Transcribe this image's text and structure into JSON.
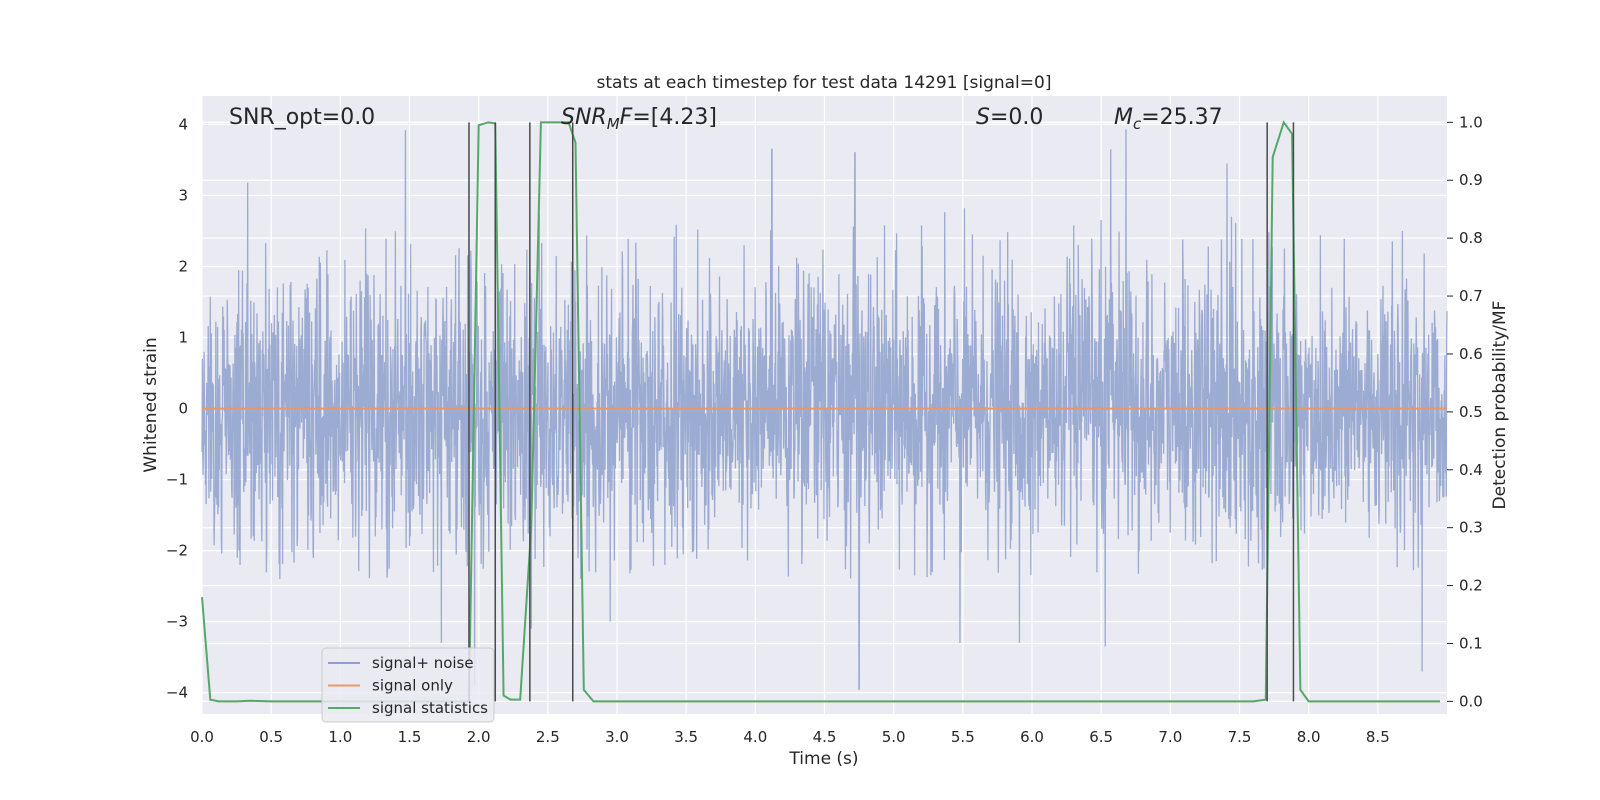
{
  "chart_data": {
    "type": "line",
    "title": "stats at each timestep for test data 14291 [signal=0]",
    "xlabel": "Time (s)",
    "ylabel": "Whitened strain",
    "y2label": "Detection probability/MF",
    "xlim": [
      0.0,
      9.0
    ],
    "ylim": [
      -4.3,
      4.4
    ],
    "y2lim": [
      -0.0218,
      1.0455
    ],
    "xticks": [
      "0.0",
      "0.5",
      "1.0",
      "1.5",
      "2.0",
      "2.5",
      "3.0",
      "3.5",
      "4.0",
      "4.5",
      "5.0",
      "5.5",
      "6.0",
      "6.5",
      "7.0",
      "7.5",
      "8.0",
      "8.5"
    ],
    "yticks": [
      "4",
      "3",
      "2",
      "1",
      "0",
      "−1",
      "−2",
      "−3",
      "−4"
    ],
    "y2ticks": [
      "1.0",
      "0.9",
      "0.8",
      "0.7",
      "0.6",
      "0.5",
      "0.4",
      "0.3",
      "0.2",
      "0.1",
      "0.0"
    ],
    "grid": true,
    "legend_position": "lower-left",
    "series": [
      {
        "name": "signal+ noise",
        "color": "#8da0cb",
        "axis": "left",
        "kind": "dense-noise",
        "x_range": [
          0.0,
          9.0
        ],
        "body_band": [
          -1.6,
          1.6
        ],
        "typical_peak_range": [
          -2.4,
          2.9
        ],
        "notable_spikes": [
          {
            "x": 0.33,
            "y": 3.18
          },
          {
            "x": 1.47,
            "y": 3.92
          },
          {
            "x": 1.73,
            "y": -3.3
          },
          {
            "x": 1.97,
            "y": -3.9
          },
          {
            "x": 2.38,
            "y": -3.1
          },
          {
            "x": 2.68,
            "y": -2.9
          },
          {
            "x": 2.95,
            "y": -3.0
          },
          {
            "x": 4.12,
            "y": 3.65
          },
          {
            "x": 4.72,
            "y": 3.6
          },
          {
            "x": 4.75,
            "y": -3.95
          },
          {
            "x": 5.48,
            "y": -3.3
          },
          {
            "x": 5.91,
            "y": -3.3
          },
          {
            "x": 6.53,
            "y": -3.35
          },
          {
            "x": 6.57,
            "y": 3.65
          },
          {
            "x": 6.68,
            "y": 3.93
          },
          {
            "x": 7.41,
            "y": 3.45
          },
          {
            "x": 8.82,
            "y": -3.7
          }
        ]
      },
      {
        "name": "signal only",
        "color": "#e5996b",
        "axis": "left",
        "x": [
          0.0,
          9.0
        ],
        "y": [
          0.0,
          0.0
        ]
      },
      {
        "name": "signal statistics",
        "color": "#55a868",
        "axis": "right",
        "x": [
          0.0,
          0.06,
          0.12,
          0.25,
          0.35,
          0.5,
          1.0,
          1.5,
          1.8,
          1.93,
          2.0,
          2.07,
          2.12,
          2.18,
          2.23,
          2.3,
          2.38,
          2.45,
          2.52,
          2.6,
          2.65,
          2.7,
          2.76,
          2.83,
          3.0,
          4.0,
          5.0,
          6.0,
          7.0,
          7.6,
          7.69,
          7.74,
          7.82,
          7.88,
          7.94,
          8.0,
          8.5,
          8.95
        ],
        "y": [
          0.18,
          0.003,
          0.0,
          0.0,
          0.001,
          0.0,
          0.0,
          0.0,
          0.0,
          0.0,
          0.995,
          1.0,
          0.998,
          0.01,
          0.003,
          0.003,
          0.3,
          1.0,
          1.0,
          1.0,
          1.0,
          0.965,
          0.02,
          0.0,
          0.0,
          0.0,
          0.0,
          0.0,
          0.0,
          0.0,
          0.003,
          0.94,
          1.0,
          0.98,
          0.02,
          0.0,
          0.0,
          0.0
        ]
      }
    ],
    "vertical_lines": {
      "color": "#4a4a4a",
      "x": [
        1.93,
        2.12,
        2.37,
        2.68,
        7.7,
        7.89
      ]
    },
    "annotations": [
      {
        "id": "snr-opt",
        "parts": [
          {
            "t": "SNR_opt=0.0",
            "i": false
          }
        ]
      },
      {
        "id": "snr-mf",
        "parts": [
          {
            "t": "SNR",
            "i": true
          },
          {
            "t": "M",
            "i": true,
            "sub": true
          },
          {
            "t": "F",
            "i": true
          },
          {
            "t": "=[4.23]",
            "i": false
          }
        ]
      },
      {
        "id": "s",
        "parts": [
          {
            "t": "S",
            "i": true
          },
          {
            "t": "=0.0",
            "i": false
          }
        ]
      },
      {
        "id": "mc",
        "parts": [
          {
            "t": "M",
            "i": true
          },
          {
            "t": "c",
            "i": true,
            "sub": true
          },
          {
            "t": "=25.37",
            "i": false
          }
        ]
      }
    ],
    "colors": {
      "plot_background": "#eaeaf2",
      "grid": "#ffffff",
      "text": "#262626"
    }
  }
}
